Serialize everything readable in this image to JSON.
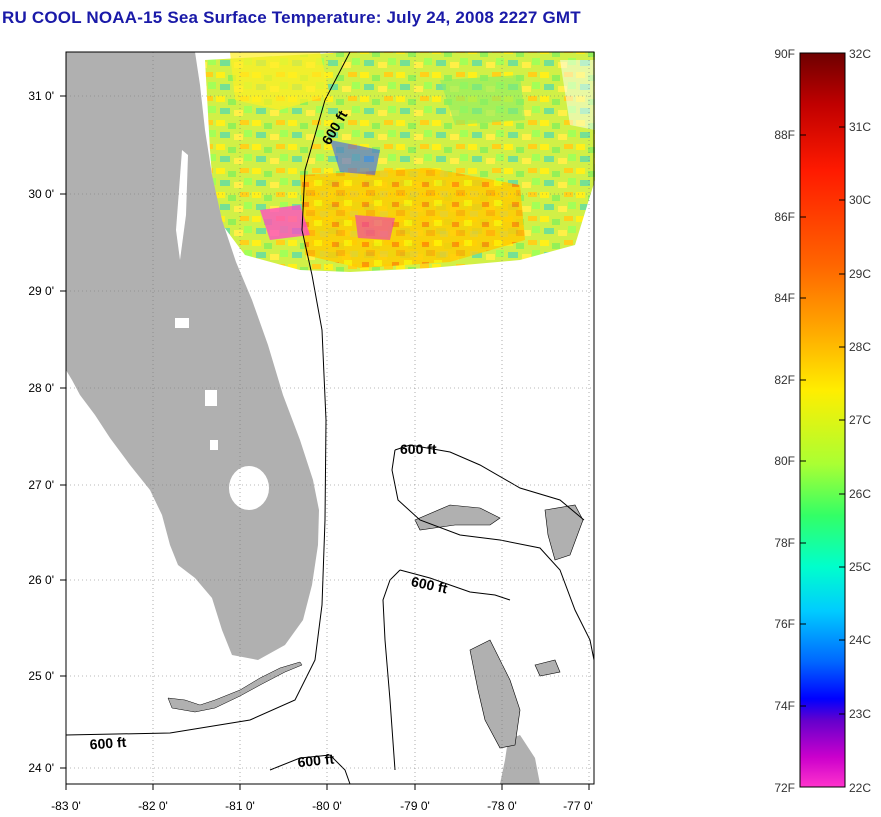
{
  "title": "RU COOL  NOAA-15  Sea Surface Temperature:  July 24, 2008 2227 GMT",
  "map": {
    "lon_labels": [
      "-83 0'",
      "-82 0'",
      "-81 0'",
      "-80 0'",
      "-79 0'",
      "-78 0'",
      "-77 0'"
    ],
    "lat_labels": [
      "31 0'",
      "30 0'",
      "29 0'",
      "28 0'",
      "27 0'",
      "26 0'",
      "25 0'",
      "24 0'"
    ],
    "contour_labels": [
      "600 ft",
      "600 ft",
      "600 ft",
      "600 ft",
      "600 ft"
    ],
    "colors": {
      "land": "#b0b0b0",
      "water": "#ffffff",
      "title": "#1a1aa8"
    }
  },
  "colorbar": {
    "f_labels": [
      "90F",
      "88F",
      "86F",
      "84F",
      "82F",
      "80F",
      "78F",
      "76F",
      "74F",
      "72F"
    ],
    "c_labels": [
      "32C",
      "31C",
      "30C",
      "29C",
      "28C",
      "27C",
      "26C",
      "25C",
      "24C",
      "23C",
      "22C"
    ],
    "gradient_colors": [
      "#6e0000",
      "#c00000",
      "#ff1a00",
      "#ff6600",
      "#ffaa00",
      "#ffee00",
      "#aaff33",
      "#33ff66",
      "#00ffcc",
      "#00ccff",
      "#0066ff",
      "#0000ff",
      "#6600cc",
      "#cc00cc",
      "#ff33cc"
    ]
  }
}
